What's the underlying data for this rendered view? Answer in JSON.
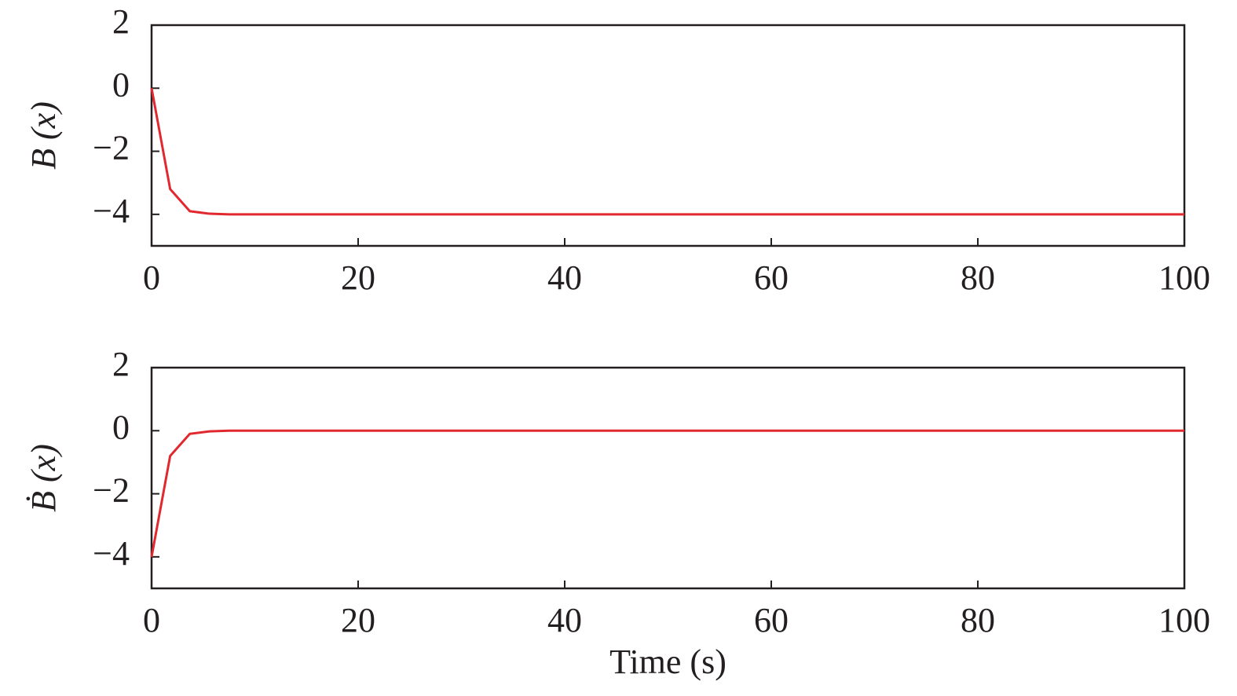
{
  "chart_data": [
    {
      "type": "line",
      "ylabel": "B (x)",
      "x": [
        0,
        1.8,
        3.7,
        5.6,
        7.5,
        10,
        15,
        20,
        30,
        40,
        50,
        60,
        70,
        80,
        90,
        100
      ],
      "series": [
        {
          "color": "#e0282e",
          "values": [
            0,
            -3.2,
            -3.9,
            -3.98,
            -4,
            -4,
            -4,
            -4,
            -4,
            -4,
            -4,
            -4,
            -4,
            -4,
            -4,
            -4
          ]
        }
      ],
      "xlim": [
        0,
        100
      ],
      "xticks": [
        0,
        20,
        40,
        60,
        80,
        100
      ],
      "ylim": [
        -5,
        2
      ],
      "yticks": [
        {
          "value": -4,
          "label": "−4"
        },
        {
          "value": -2,
          "label": "−2"
        },
        0,
        2
      ],
      "grid": false
    },
    {
      "type": "line",
      "ylabel": "Ḃ (x)",
      "xlabel": "Time (s)",
      "x": [
        0,
        1.8,
        3.7,
        5.6,
        7.5,
        10,
        15,
        20,
        30,
        40,
        50,
        60,
        70,
        80,
        90,
        100
      ],
      "series": [
        {
          "color": "#e0282e",
          "values": [
            -4,
            -0.8,
            -0.1,
            -0.02,
            0,
            0,
            0,
            0,
            0,
            0,
            0,
            0,
            0,
            0,
            0,
            0
          ]
        }
      ],
      "xlim": [
        0,
        100
      ],
      "xticks": [
        0,
        20,
        40,
        60,
        80,
        100
      ],
      "ylim": [
        -5,
        2
      ],
      "yticks": [
        {
          "value": -4,
          "label": "−4"
        },
        {
          "value": -2,
          "label": "−2"
        },
        0,
        2
      ],
      "grid": false
    }
  ]
}
